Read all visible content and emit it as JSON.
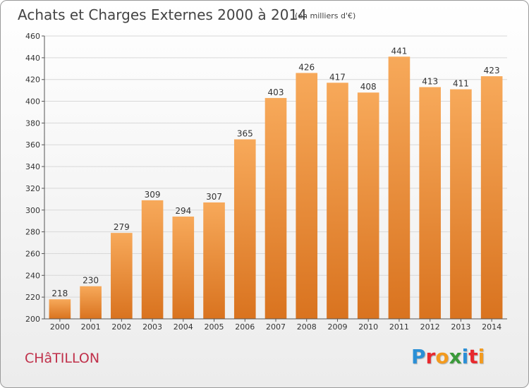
{
  "header": {
    "title": "Achats et Charges Externes 2000 à 2014",
    "subtitle": "(en milliers d'€)"
  },
  "footer": {
    "town": "CHâTILLON",
    "brand": "Proxiti",
    "brand_colors": [
      "#2a8fd6",
      "#e8292e",
      "#f39a1e",
      "#3a9a3a",
      "#2a8fd6",
      "#e8292e",
      "#f39a1e"
    ]
  },
  "colors": {
    "bar_top": "#f7a95a",
    "bar_bottom": "#d9731f",
    "grid": "#d8d8d8",
    "axis": "#555555",
    "text": "#333333"
  },
  "chart_data": {
    "type": "bar",
    "title": "Achats et Charges Externes 2000 à 2014",
    "subtitle": "(en milliers d'€)",
    "categories": [
      "2000",
      "2001",
      "2002",
      "2003",
      "2004",
      "2005",
      "2006",
      "2007",
      "2008",
      "2009",
      "2010",
      "2011",
      "2012",
      "2013",
      "2014"
    ],
    "values": [
      218,
      230,
      279,
      309,
      294,
      307,
      365,
      403,
      426,
      417,
      408,
      441,
      413,
      411,
      423
    ],
    "xlabel": "",
    "ylabel": "",
    "ylim": [
      200,
      460
    ],
    "yticks": [
      200,
      220,
      240,
      260,
      280,
      300,
      320,
      340,
      360,
      380,
      400,
      420,
      440,
      460
    ],
    "grid": true,
    "legend": "none"
  }
}
